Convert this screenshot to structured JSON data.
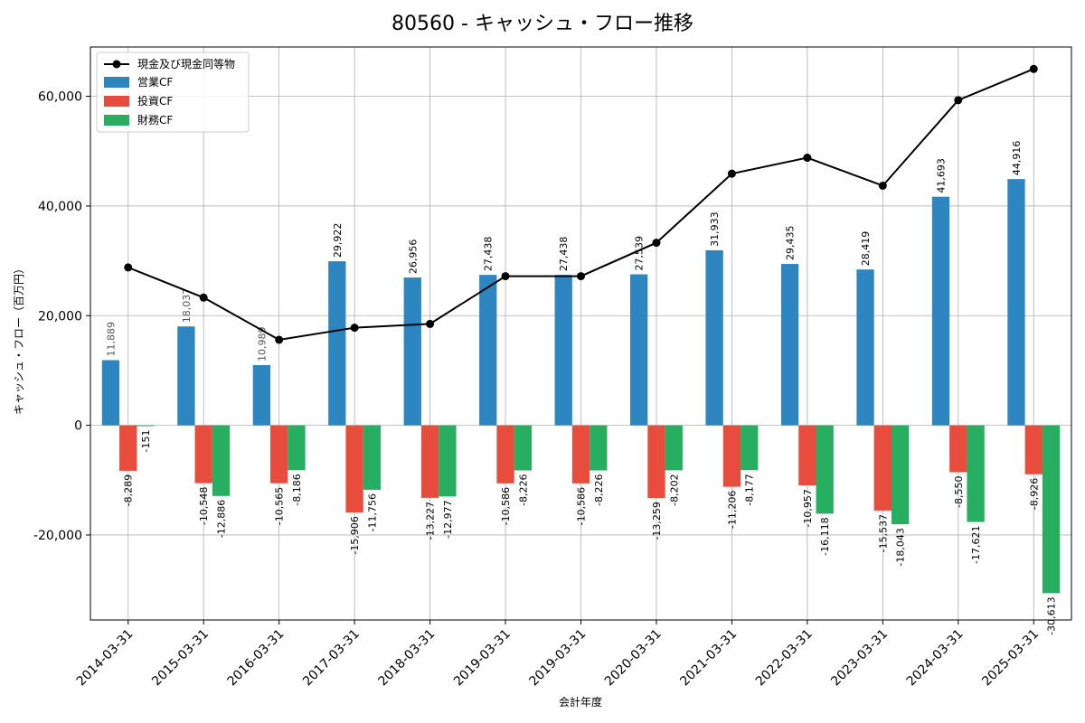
{
  "chart_data": {
    "type": "bar",
    "title": "80560 - キャッシュ・フロー推移",
    "xlabel": "会計年度",
    "ylabel": "キャッシュ・フロー（百万円）",
    "ylim": [
      -35500,
      69000
    ],
    "yticks": [
      -20000,
      0,
      20000,
      40000,
      60000
    ],
    "ytick_labels": [
      "-20,000",
      "0",
      "20,000",
      "40,000",
      "60,000"
    ],
    "grid": true,
    "legend": "top-left",
    "categories": [
      "2014-03-31",
      "2015-03-31",
      "2016-03-31",
      "2017-03-31",
      "2018-03-31",
      "2019-03-31",
      "2019-03-31",
      "2020-03-31",
      "2021-03-31",
      "2022-03-31",
      "2023-03-31",
      "2024-03-31",
      "2025-03-31"
    ],
    "series": [
      {
        "name": "営業CF",
        "color": "#2e86c1",
        "values": [
          11889,
          18037,
          10989,
          29922,
          26956,
          27438,
          27438,
          27539,
          31933,
          29435,
          28419,
          41693,
          44916
        ],
        "labels": [
          "11,889",
          "18,037",
          "10,989",
          "29,922",
          "26,956",
          "27,438",
          "27,438",
          "27,539",
          "31,933",
          "29,435",
          "28,419",
          "41,693",
          "44,916"
        ]
      },
      {
        "name": "投資CF",
        "color": "#e74c3c",
        "values": [
          -8289,
          -10548,
          -10565,
          -15906,
          -13227,
          -10586,
          -10586,
          -13259,
          -11206,
          -10957,
          -15537,
          -8550,
          -8926
        ],
        "labels": [
          "-8,289",
          "-10,548",
          "-10,565",
          "-15,906",
          "-13,227",
          "-10,586",
          "-10,586",
          "-13,259",
          "-11,206",
          "-10,957",
          "-15,537",
          "-8,550",
          "-8,926"
        ]
      },
      {
        "name": "財務CF",
        "color": "#27ae60",
        "values": [
          -151,
          -12886,
          -8186,
          -11756,
          -12977,
          -8226,
          -8226,
          -8202,
          -8177,
          -16118,
          -18043,
          -17621,
          -30613
        ],
        "labels": [
          "-151",
          "-12,886",
          "-8,186",
          "-11,756",
          "-12,977",
          "-8,226",
          "-8,226",
          "-8,202",
          "-8,177",
          "-16,118",
          "-18,043",
          "-17,621",
          "-30,613"
        ]
      }
    ],
    "line": {
      "name": "現金及び現金同等物",
      "color": "#000000",
      "values": [
        28800,
        23300,
        15600,
        17800,
        18500,
        27200,
        27200,
        33300,
        45900,
        48800,
        43700,
        59300,
        65000
      ]
    }
  }
}
